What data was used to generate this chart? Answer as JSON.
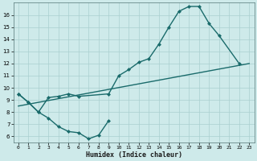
{
  "xlabel": "Humidex (Indice chaleur)",
  "bg_color": "#ceeaea",
  "grid_color": "#aacfcf",
  "line_color": "#1a6b6b",
  "xlim": [
    -0.5,
    23.5
  ],
  "ylim": [
    5.5,
    17.0
  ],
  "yticks": [
    6,
    7,
    8,
    9,
    10,
    11,
    12,
    13,
    14,
    15,
    16
  ],
  "xticks": [
    0,
    1,
    2,
    3,
    4,
    5,
    6,
    7,
    8,
    9,
    10,
    11,
    12,
    13,
    14,
    15,
    16,
    17,
    18,
    19,
    20,
    21,
    22,
    23
  ],
  "line1_x": [
    0,
    1,
    2,
    3,
    4,
    5,
    6,
    7,
    8,
    9
  ],
  "line1_y": [
    9.5,
    8.8,
    8.0,
    7.5,
    6.8,
    6.4,
    6.3,
    5.8,
    6.1,
    7.3
  ],
  "line2_x": [
    0,
    1,
    2,
    3,
    4,
    5,
    6,
    9,
    10,
    11,
    12,
    13,
    14,
    15,
    16,
    17,
    18,
    19,
    20,
    22
  ],
  "line2_y": [
    9.5,
    8.8,
    8.0,
    9.2,
    9.3,
    9.5,
    9.3,
    9.5,
    11.0,
    11.5,
    12.1,
    12.4,
    13.6,
    15.0,
    16.3,
    16.7,
    16.7,
    15.3,
    14.3,
    12.0
  ],
  "line3_x": [
    0,
    23
  ],
  "line3_y": [
    8.5,
    12.0
  ],
  "markersize": 2.5,
  "linewidth": 1.0
}
